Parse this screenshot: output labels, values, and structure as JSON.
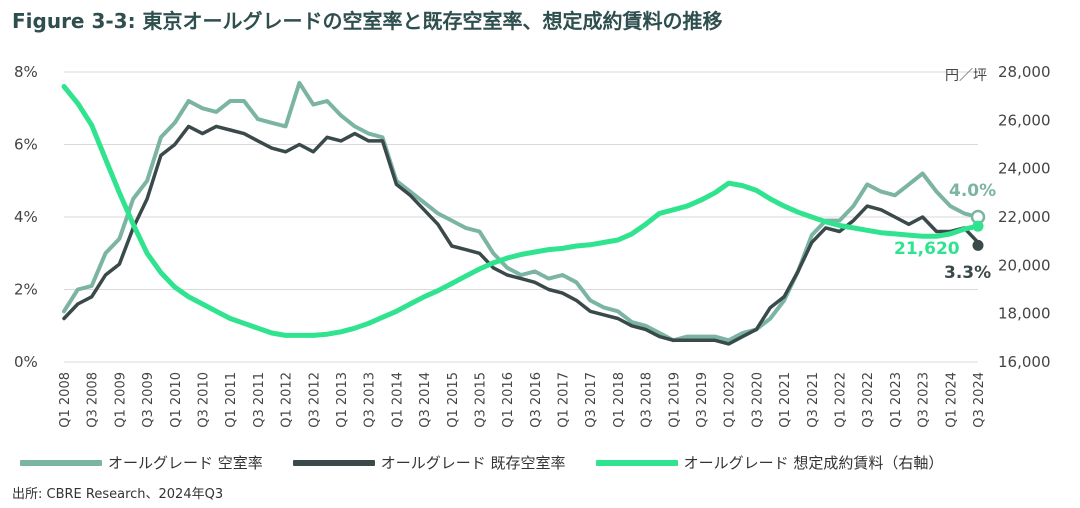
{
  "title": "Figure 3-3: 東京オールグレードの空室率と既存空室率、想定成約賃料の推移",
  "source": "出所: CBRE Research、2024年Q3",
  "colors": {
    "vacancy": "#7cb4a4",
    "existing": "#3a4a4a",
    "rent": "#2fe38f",
    "grid": "#d9d9d9"
  },
  "chart_data": {
    "type": "line",
    "title": "東京オールグレードの空室率と既存空室率、想定成約賃料の推移",
    "y_left": {
      "ticks": [
        "0%",
        "2%",
        "4%",
        "6%",
        "8%"
      ],
      "range": [
        0,
        8
      ]
    },
    "y_right": {
      "unit": "円／坪",
      "ticks": [
        "16,000",
        "18,000",
        "20,000",
        "22,000",
        "24,000",
        "26,000",
        "28,000"
      ],
      "range": [
        16000,
        28000
      ]
    },
    "categories": [
      "Q1 2008",
      "Q2 2008",
      "Q3 2008",
      "Q4 2008",
      "Q1 2009",
      "Q2 2009",
      "Q3 2009",
      "Q4 2009",
      "Q1 2010",
      "Q2 2010",
      "Q3 2010",
      "Q4 2010",
      "Q1 2011",
      "Q2 2011",
      "Q3 2011",
      "Q4 2011",
      "Q1 2012",
      "Q2 2012",
      "Q3 2012",
      "Q4 2012",
      "Q1 2013",
      "Q2 2013",
      "Q3 2013",
      "Q4 2013",
      "Q1 2014",
      "Q2 2014",
      "Q3 2014",
      "Q4 2014",
      "Q1 2015",
      "Q2 2015",
      "Q3 2015",
      "Q4 2015",
      "Q1 2016",
      "Q2 2016",
      "Q3 2016",
      "Q4 2016",
      "Q1 2017",
      "Q2 2017",
      "Q3 2017",
      "Q4 2017",
      "Q1 2018",
      "Q2 2018",
      "Q3 2018",
      "Q4 2018",
      "Q1 2019",
      "Q2 2019",
      "Q3 2019",
      "Q4 2019",
      "Q1 2020",
      "Q2 2020",
      "Q3 2020",
      "Q4 2020",
      "Q1 2021",
      "Q2 2021",
      "Q3 2021",
      "Q4 2021",
      "Q1 2022",
      "Q2 2022",
      "Q3 2022",
      "Q4 2022",
      "Q1 2023",
      "Q2 2023",
      "Q3 2023",
      "Q4 2023",
      "Q1 2024",
      "Q2 2024",
      "Q3 2024"
    ],
    "x_tick_labels": [
      "Q1 2008",
      "Q3 2008",
      "Q1 2009",
      "Q3 2009",
      "Q1 2010",
      "Q3 2010",
      "Q1 2011",
      "Q3 2011",
      "Q1 2012",
      "Q3 2012",
      "Q1 2013",
      "Q3 2013",
      "Q1 2014",
      "Q3 2014",
      "Q1 2015",
      "Q3 2015",
      "Q1 2016",
      "Q3 2016",
      "Q1 2017",
      "Q3 2017",
      "Q1 2018",
      "Q3 2018",
      "Q1 2019",
      "Q3 2019",
      "Q1 2020",
      "Q3 2020",
      "Q1 2021",
      "Q3 2021",
      "Q1 2022",
      "Q3 2022",
      "Q1 2023",
      "Q3 2023",
      "Q1 2024",
      "Q3 2024"
    ],
    "series": [
      {
        "name": "オールグレード 空室率",
        "axis": "left",
        "unit": "%",
        "values": [
          1.4,
          2.0,
          2.1,
          3.0,
          3.4,
          4.5,
          5.0,
          6.2,
          6.6,
          7.2,
          7.0,
          6.9,
          7.2,
          7.2,
          6.7,
          6.6,
          6.5,
          7.7,
          7.1,
          7.2,
          6.8,
          6.5,
          6.3,
          6.2,
          5.0,
          4.7,
          4.4,
          4.1,
          3.9,
          3.7,
          3.6,
          3.0,
          2.6,
          2.4,
          2.5,
          2.3,
          2.4,
          2.2,
          1.7,
          1.5,
          1.4,
          1.1,
          1.0,
          0.8,
          0.6,
          0.7,
          0.7,
          0.7,
          0.6,
          0.8,
          0.9,
          1.2,
          1.7,
          2.5,
          3.5,
          3.9,
          3.9,
          4.3,
          4.9,
          4.7,
          4.6,
          4.9,
          5.2,
          4.7,
          4.3,
          4.1,
          4.0
        ]
      },
      {
        "name": "オールグレード 既存空室率",
        "axis": "left",
        "unit": "%",
        "values": [
          1.2,
          1.6,
          1.8,
          2.4,
          2.7,
          3.7,
          4.5,
          5.7,
          6.0,
          6.5,
          6.3,
          6.5,
          6.4,
          6.3,
          6.1,
          5.9,
          5.8,
          6.0,
          5.8,
          6.2,
          6.1,
          6.3,
          6.1,
          6.1,
          4.9,
          4.6,
          4.2,
          3.8,
          3.2,
          3.1,
          3.0,
          2.6,
          2.4,
          2.3,
          2.2,
          2.0,
          1.9,
          1.7,
          1.4,
          1.3,
          1.2,
          1.0,
          0.9,
          0.7,
          0.6,
          0.6,
          0.6,
          0.6,
          0.5,
          0.7,
          0.9,
          1.5,
          1.8,
          2.5,
          3.3,
          3.7,
          3.6,
          3.9,
          4.3,
          4.2,
          4.0,
          3.8,
          4.0,
          3.6,
          3.6,
          3.7,
          3.3
        ]
      },
      {
        "name": "オールグレード 想定成約賃料（右軸）",
        "axis": "right",
        "unit": "円／坪",
        "values": [
          27400,
          26700,
          25800,
          24400,
          23000,
          21700,
          20500,
          19700,
          19100,
          18700,
          18400,
          18100,
          17800,
          17600,
          17400,
          17200,
          17100,
          17100,
          17100,
          17150,
          17250,
          17400,
          17600,
          17850,
          18100,
          18400,
          18700,
          18950,
          19250,
          19550,
          19850,
          20100,
          20300,
          20450,
          20550,
          20650,
          20700,
          20800,
          20850,
          20950,
          21050,
          21300,
          21700,
          22150,
          22300,
          22450,
          22700,
          23000,
          23400,
          23300,
          23100,
          22750,
          22450,
          22200,
          22000,
          21800,
          21650,
          21550,
          21450,
          21350,
          21300,
          21250,
          21200,
          21200,
          21300,
          21500,
          21620
        ]
      }
    ],
    "end_labels": {
      "vacancy": "4.0%",
      "existing": "3.3%",
      "rent": "21,620"
    }
  }
}
